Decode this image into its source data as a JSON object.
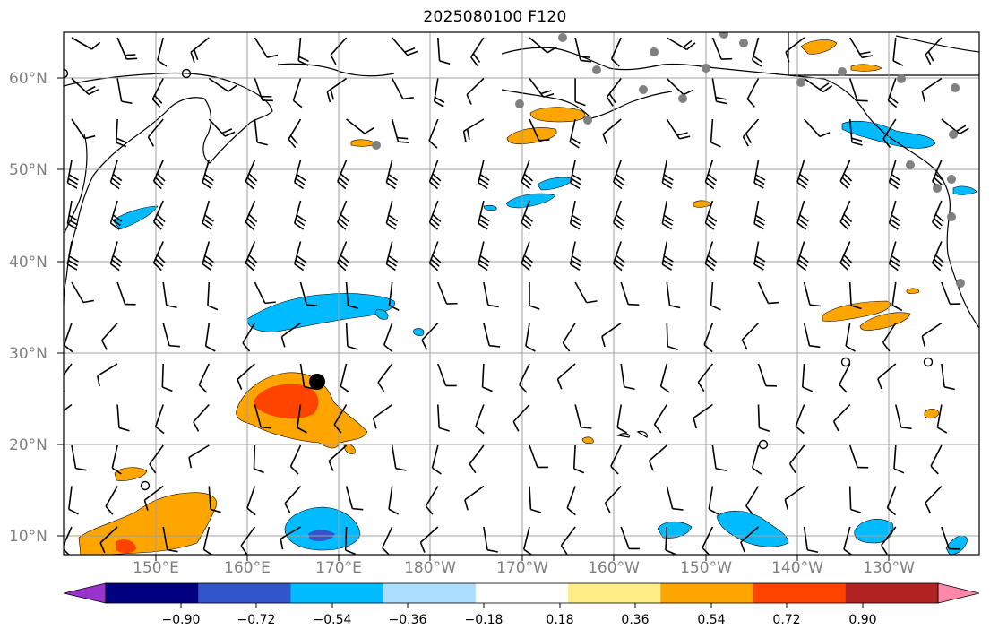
{
  "title": "2025080100 F120",
  "lat_labels": [
    "60°N",
    "50°N",
    "40°N",
    "30°N",
    "20°N",
    "10°N"
  ],
  "lon_labels": [
    "150°E",
    "160°E",
    "170°E",
    "180°W",
    "170°W",
    "160°W",
    "150°W",
    "140°W",
    "130°W"
  ],
  "colorbar": {
    "ticks": [
      "−0.90",
      "−0.72",
      "−0.54",
      "−0.36",
      "−0.18",
      "0.18",
      "0.36",
      "0.54",
      "0.72",
      "0.90"
    ],
    "colors": [
      "#9933cc",
      "#000080",
      "#3355cc",
      "#00bbff",
      "#aaddff",
      "#ffffff",
      "#ffee88",
      "#ffa500",
      "#ff4400",
      "#b22222",
      "#ff88aa"
    ]
  },
  "map": {
    "land_color": "#ffffff",
    "coast_color": "#000000",
    "grid_color": "#a0a0a0",
    "storm_marker": "filled-circle",
    "station_marker_color": "#808080"
  }
}
